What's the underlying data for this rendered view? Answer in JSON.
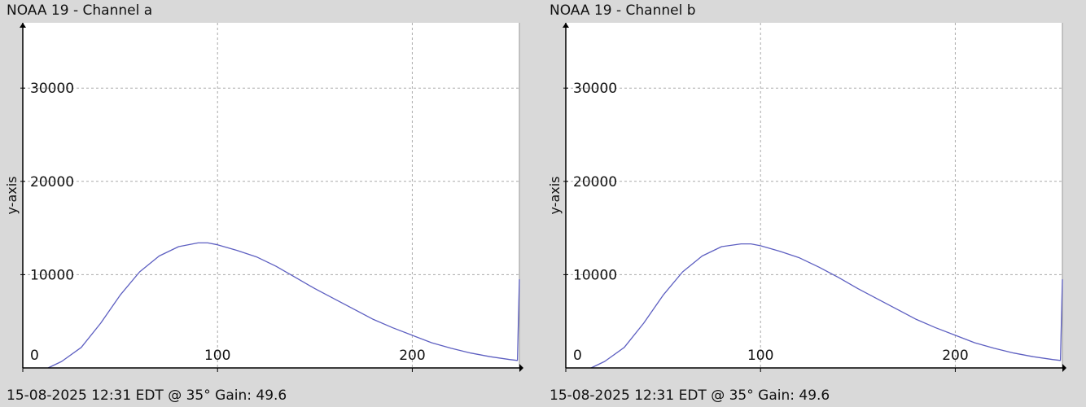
{
  "chart_data": [
    {
      "type": "line",
      "title": "NOAA 19 - Channel a",
      "footer": "15-08-2025 12:31 EDT @ 35° Gain: 49.6",
      "xlabel": "",
      "ylabel": "y-axis",
      "xlim": [
        0,
        255
      ],
      "ylim": [
        0,
        37000
      ],
      "grid": true,
      "x_ticks": [
        0,
        100,
        200
      ],
      "y_ticks": [
        10000,
        20000,
        30000
      ],
      "series": [
        {
          "color": "#5d5fc1",
          "x": [
            13,
            20,
            30,
            40,
            50,
            60,
            70,
            80,
            90,
            95,
            100,
            110,
            120,
            130,
            140,
            150,
            160,
            170,
            180,
            190,
            200,
            210,
            220,
            230,
            240,
            250,
            254,
            255
          ],
          "y": [
            0,
            700,
            2200,
            4800,
            7800,
            10300,
            12000,
            13000,
            13400,
            13400,
            13200,
            12600,
            11900,
            10900,
            9700,
            8500,
            7400,
            6300,
            5200,
            4300,
            3500,
            2700,
            2100,
            1600,
            1200,
            900,
            800,
            9500
          ]
        }
      ]
    },
    {
      "type": "line",
      "title": "NOAA 19 - Channel b",
      "footer": "15-08-2025 12:31 EDT @ 35° Gain: 49.6",
      "xlabel": "",
      "ylabel": "y-axis",
      "xlim": [
        0,
        255
      ],
      "ylim": [
        0,
        37000
      ],
      "grid": true,
      "x_ticks": [
        0,
        100,
        200
      ],
      "y_ticks": [
        10000,
        20000,
        30000
      ],
      "series": [
        {
          "color": "#5d5fc1",
          "x": [
            13,
            20,
            30,
            40,
            50,
            60,
            70,
            80,
            90,
            95,
            100,
            110,
            120,
            130,
            140,
            150,
            160,
            170,
            180,
            190,
            200,
            210,
            220,
            230,
            240,
            250,
            254,
            255
          ],
          "y": [
            0,
            700,
            2200,
            4800,
            7800,
            10300,
            12000,
            13000,
            13300,
            13300,
            13100,
            12500,
            11800,
            10800,
            9700,
            8500,
            7400,
            6300,
            5200,
            4300,
            3500,
            2700,
            2100,
            1600,
            1200,
            900,
            800,
            9500
          ]
        }
      ]
    }
  ]
}
